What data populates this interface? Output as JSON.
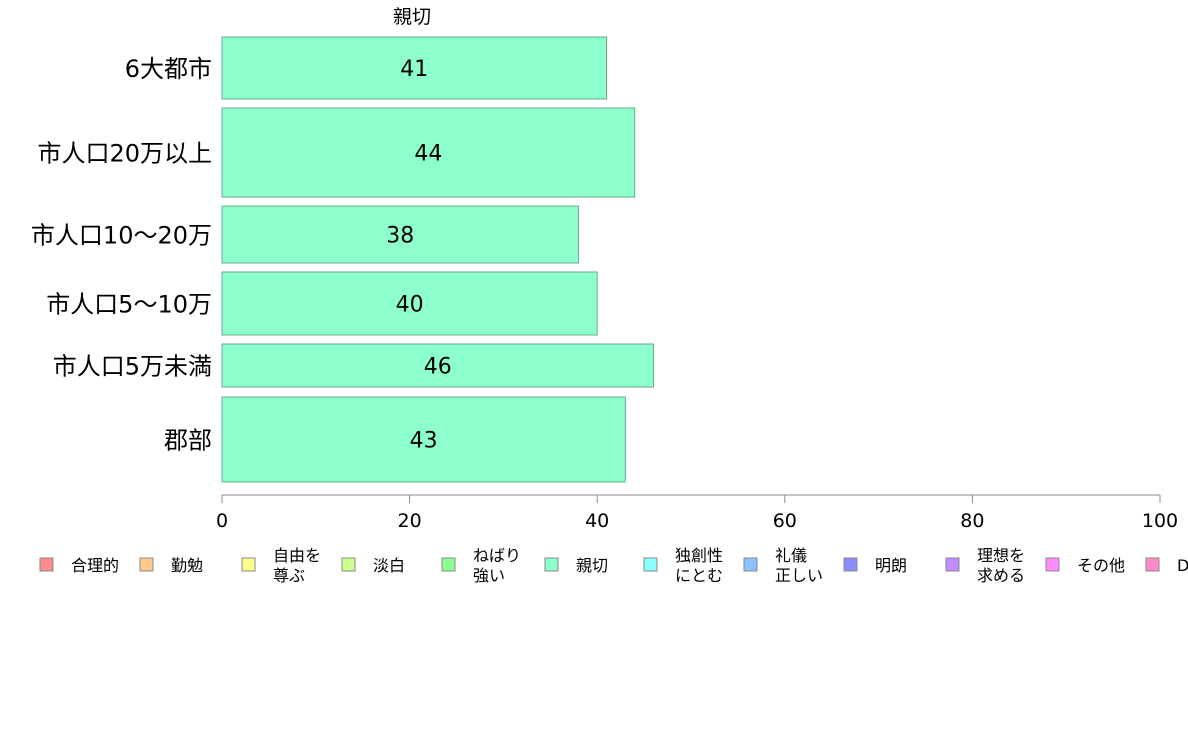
{
  "chart_data": {
    "type": "bar",
    "orientation": "horizontal",
    "title": "親切",
    "categories": [
      "6大都市",
      "市人口20万以上",
      "市人口10〜20万",
      "市人口5〜10万",
      "市人口5万未満",
      "郡部"
    ],
    "series": [
      {
        "name": "親切",
        "values": [
          41,
          44,
          38,
          40,
          46,
          43
        ]
      }
    ],
    "value_labels": [
      "41",
      "44",
      "38",
      "40",
      "46",
      "43"
    ],
    "bar_color": "#8dffcc",
    "xlim": [
      0,
      100
    ],
    "xticks": [
      0,
      20,
      40,
      60,
      80,
      100
    ],
    "xtick_labels": [
      "0",
      "20",
      "40",
      "60",
      "80",
      "100"
    ],
    "grid": false,
    "legend_position": "bottom",
    "legend": [
      {
        "lines": [
          "合理的"
        ],
        "color": "#ff8c8c"
      },
      {
        "lines": [
          "勤勉"
        ],
        "color": "#ffcc8c"
      },
      {
        "lines": [
          "自由を",
          "尊ぶ"
        ],
        "color": "#ffff8c"
      },
      {
        "lines": [
          "淡白"
        ],
        "color": "#ccff8c"
      },
      {
        "lines": [
          "ねばり",
          "強い"
        ],
        "color": "#8cff8c"
      },
      {
        "lines": [
          "親切"
        ],
        "color": "#8dffcc"
      },
      {
        "lines": [
          "独創性",
          "にとむ"
        ],
        "color": "#8cffff"
      },
      {
        "lines": [
          "礼儀",
          "正しい"
        ],
        "color": "#8cc0ff"
      },
      {
        "lines": [
          "明朗"
        ],
        "color": "#8c8cff"
      },
      {
        "lines": [
          "理想を",
          "求める"
        ],
        "color": "#c08cff"
      },
      {
        "lines": [
          "その他"
        ],
        "color": "#ff8cff"
      },
      {
        "lines": [
          "D"
        ],
        "color": "#ff8cc8"
      }
    ]
  }
}
